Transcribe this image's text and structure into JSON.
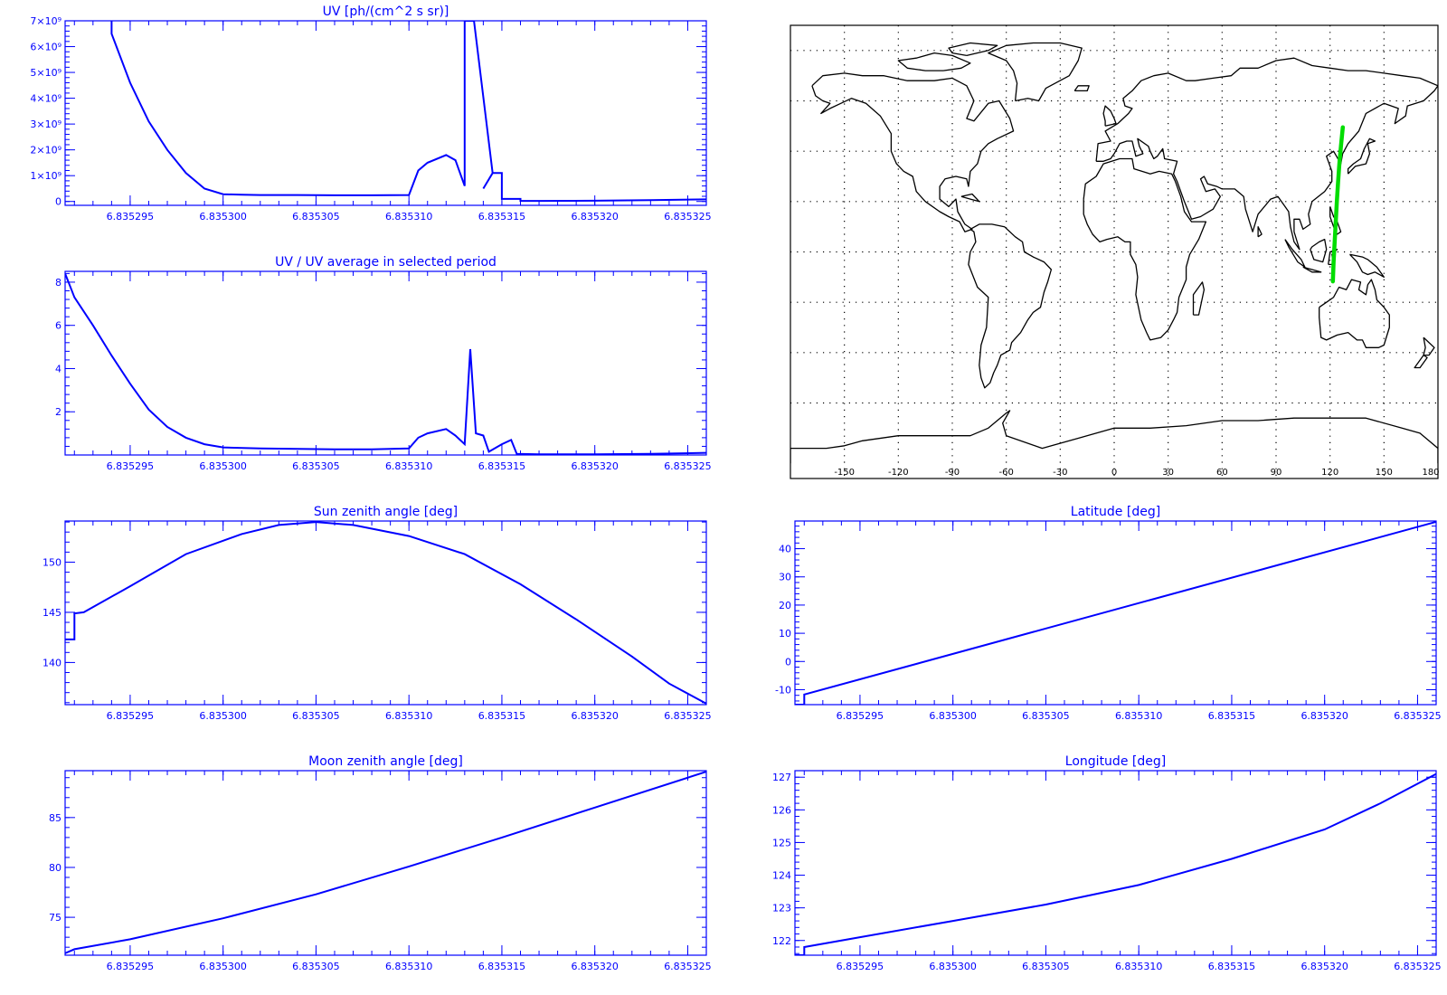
{
  "colors": {
    "plot": "#0000ff",
    "map": "#000000",
    "track": "#00dd00"
  },
  "chart_data": [
    {
      "id": "uv",
      "type": "line",
      "title": "UV [ph/(cm^2 s sr)]",
      "xlim": [
        6.8352915,
        6.835326
      ],
      "ylim": [
        -150000000,
        7000000000
      ],
      "xticks": [
        6.835295,
        6.8353,
        6.835305,
        6.83531,
        6.835315,
        6.83532,
        6.835325
      ],
      "xticklabels": [
        "6.835295",
        "6.835300",
        "6.835305",
        "6.835310",
        "6.835315",
        "6.835320",
        "6.835325"
      ],
      "yticks": [
        0,
        1000000000,
        2000000000,
        3000000000,
        4000000000,
        5000000000,
        6000000000,
        7000000000
      ],
      "yticklabels": [
        "0",
        "1×10⁹",
        "2×10⁹",
        "3×10⁹",
        "4×10⁹",
        "5×10⁹",
        "6×10⁹",
        "7×10⁹"
      ],
      "x": [
        6.835294,
        6.835294,
        6.835295,
        6.835296,
        6.835297,
        6.835298,
        6.835299,
        6.8353,
        6.835301,
        6.835302,
        6.835304,
        6.835306,
        6.835308,
        6.83531,
        6.8353105,
        6.835311,
        6.835312,
        6.8353125,
        6.835313,
        6.835313,
        6.835313,
        6.8353135,
        6.8353145,
        6.835314,
        6.8353145,
        6.835315,
        6.835315,
        6.835316,
        6.835316,
        6.835317,
        6.83532,
        6.835323,
        6.835326
      ],
      "y": [
        7000000000,
        6500000000,
        4600000000,
        3100000000,
        2000000000,
        1100000000,
        500000000,
        280000000,
        260000000,
        250000000,
        250000000,
        240000000,
        240000000,
        250000000,
        1200000000,
        1500000000,
        1800000000,
        1600000000,
        600000000,
        1100000000,
        7000000000,
        7000000000,
        1100000000,
        500000000,
        1100000000,
        1100000000,
        100000000,
        100000000,
        20000000,
        20000000,
        30000000,
        50000000,
        80000000
      ]
    },
    {
      "id": "uvratio",
      "type": "line",
      "title": "UV / UV average in selected period",
      "xlim": [
        6.8352915,
        6.835326
      ],
      "ylim": [
        0,
        8.5
      ],
      "xticks": [
        6.835295,
        6.8353,
        6.835305,
        6.83531,
        6.835315,
        6.83532,
        6.835325
      ],
      "xticklabels": [
        "6.835295",
        "6.835300",
        "6.835305",
        "6.835310",
        "6.835315",
        "6.835320",
        "6.835325"
      ],
      "yticks": [
        2,
        4,
        6,
        8
      ],
      "yticklabels": [
        "2",
        "4",
        "6",
        "8"
      ],
      "x": [
        6.8352915,
        6.835292,
        6.835293,
        6.835294,
        6.835295,
        6.835296,
        6.835297,
        6.835298,
        6.835299,
        6.8353,
        6.835302,
        6.835304,
        6.835306,
        6.835308,
        6.83531,
        6.8353105,
        6.835311,
        6.835312,
        6.8353125,
        6.835313,
        6.8353133,
        6.8353136,
        6.835314,
        6.8353143,
        6.835315,
        6.8353155,
        6.8353158,
        6.835317,
        6.83532,
        6.835323,
        6.835326
      ],
      "y": [
        8.4,
        7.3,
        6.0,
        4.6,
        3.3,
        2.1,
        1.3,
        0.8,
        0.5,
        0.35,
        0.3,
        0.28,
        0.26,
        0.26,
        0.3,
        0.8,
        1.0,
        1.2,
        0.9,
        0.5,
        4.9,
        1.0,
        0.9,
        0.15,
        0.5,
        0.7,
        0.05,
        0.03,
        0.03,
        0.05,
        0.1
      ]
    },
    {
      "id": "sza",
      "type": "line",
      "title": "Sun zenith angle [deg]",
      "xlim": [
        6.8352915,
        6.835326
      ],
      "ylim": [
        135.8,
        154.1
      ],
      "xticks": [
        6.835295,
        6.8353,
        6.835305,
        6.83531,
        6.835315,
        6.83532,
        6.835325
      ],
      "xticklabels": [
        "6.835295",
        "6.835300",
        "6.835305",
        "6.835310",
        "6.835315",
        "6.835320",
        "6.835325"
      ],
      "yticks": [
        140,
        145,
        150
      ],
      "yticklabels": [
        "140",
        "145",
        "150"
      ],
      "x": [
        6.8352915,
        6.835292,
        6.835292,
        6.835292,
        6.8352925,
        6.835295,
        6.835298,
        6.835301,
        6.835303,
        6.835305,
        6.835307,
        6.83531,
        6.835313,
        6.835316,
        6.835319,
        6.835322,
        6.835324,
        6.835326
      ],
      "y": [
        142.3,
        142.3,
        143.8,
        144.9,
        145.0,
        147.6,
        150.8,
        152.8,
        153.7,
        154.0,
        153.7,
        152.6,
        150.8,
        147.8,
        144.3,
        140.6,
        137.9,
        135.9
      ]
    },
    {
      "id": "moon",
      "type": "line",
      "title": "Moon zenith angle [deg]",
      "xlim": [
        6.8352915,
        6.835326
      ],
      "ylim": [
        71.2,
        89.7
      ],
      "xticks": [
        6.835295,
        6.8353,
        6.835305,
        6.83531,
        6.835315,
        6.83532,
        6.835325
      ],
      "xticklabels": [
        "6.835295",
        "6.835300",
        "6.835305",
        "6.835310",
        "6.835315",
        "6.835320",
        "6.835325"
      ],
      "yticks": [
        75,
        80,
        85
      ],
      "yticklabels": [
        "75",
        "80",
        "85"
      ],
      "x": [
        6.8352915,
        6.835292,
        6.835295,
        6.8353,
        6.835305,
        6.83531,
        6.835315,
        6.83532,
        6.835326
      ],
      "y": [
        71.4,
        71.8,
        72.8,
        74.9,
        77.3,
        80.1,
        83.0,
        86.0,
        89.6
      ]
    },
    {
      "id": "lat",
      "type": "line",
      "title": "Latitude [deg]",
      "xlim": [
        6.8352915,
        6.835326
      ],
      "ylim": [
        -15.3,
        49.8
      ],
      "xticks": [
        6.835295,
        6.8353,
        6.835305,
        6.83531,
        6.835315,
        6.83532,
        6.835325
      ],
      "xticklabels": [
        "6.835295",
        "6.835300",
        "6.835305",
        "6.835310",
        "6.835315",
        "6.835320",
        "6.835325"
      ],
      "yticks": [
        -10,
        0,
        10,
        20,
        30,
        40
      ],
      "yticklabels": [
        "-10",
        "0",
        "10",
        "20",
        "30",
        "40"
      ],
      "x": [
        6.8352915,
        6.835292,
        6.835292,
        6.835326
      ],
      "y": [
        -15.3,
        -15.3,
        -11.7,
        49.5
      ]
    },
    {
      "id": "lon",
      "type": "line",
      "title": "Longitude [deg]",
      "xlim": [
        6.8352915,
        6.835326
      ],
      "ylim": [
        121.55,
        127.2
      ],
      "xticks": [
        6.835295,
        6.8353,
        6.835305,
        6.83531,
        6.835315,
        6.83532,
        6.835325
      ],
      "xticklabels": [
        "6.835295",
        "6.835300",
        "6.835305",
        "6.835310",
        "6.835315",
        "6.835320",
        "6.835325"
      ],
      "yticks": [
        122,
        123,
        124,
        125,
        126,
        127
      ],
      "yticklabels": [
        "122",
        "123",
        "124",
        "125",
        "126",
        "127"
      ],
      "x": [
        6.8352915,
        6.835292,
        6.835292,
        6.835295,
        6.8353,
        6.835305,
        6.83531,
        6.835315,
        6.83532,
        6.835323,
        6.835326
      ],
      "y": [
        121.55,
        121.55,
        121.8,
        122.1,
        122.6,
        123.1,
        123.7,
        124.5,
        125.4,
        126.2,
        127.1
      ]
    },
    {
      "id": "map",
      "type": "map",
      "xlim": [
        -180,
        180
      ],
      "ylim": [
        -90,
        90
      ],
      "grid": true,
      "xticks": [
        -150,
        -120,
        -90,
        -60,
        -30,
        0,
        30,
        60,
        90,
        120,
        150,
        180
      ],
      "xticklabels": [
        "-150",
        "-120",
        "-90",
        "-60",
        "-30",
        "0",
        "30",
        "60",
        "90",
        "120",
        "150",
        "180"
      ],
      "track": {
        "lon": [
          121.6,
          122.0,
          122.6,
          123.2,
          123.8,
          124.5,
          125.3,
          126.2,
          127.1
        ],
        "lat": [
          -11.7,
          -4.0,
          4.0,
          12.0,
          20.0,
          28.0,
          36.0,
          43.0,
          49.5
        ]
      }
    }
  ]
}
